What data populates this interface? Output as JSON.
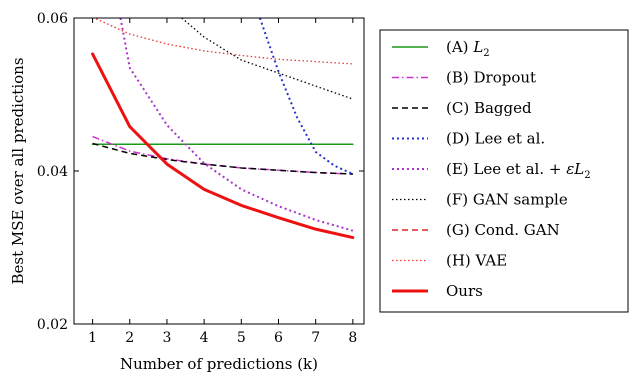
{
  "chart_data": {
    "type": "line",
    "xlabel": "Number of predictions (k)",
    "ylabel": "Best MSE over all predictions",
    "xlim": [
      0.5,
      8.3
    ],
    "ylim": [
      0.02,
      0.06
    ],
    "xticks": [
      1,
      2,
      3,
      4,
      5,
      6,
      7,
      8
    ],
    "yticks": [
      0.02,
      0.04,
      0.06
    ],
    "ytick_labels": [
      "0.02",
      "0.04",
      "0.06"
    ],
    "grid": false,
    "legend_position": "right",
    "series": [
      {
        "name": "(A) L2",
        "color": "#1a9a1a",
        "style": "solid",
        "width": 1.5,
        "x": [
          1,
          2,
          3,
          4,
          5,
          6,
          7,
          8
        ],
        "y": [
          0.0435,
          0.0435,
          0.0435,
          0.0435,
          0.0435,
          0.0435,
          0.0435,
          0.0435
        ]
      },
      {
        "name": "(B) Dropout",
        "color": "#cc33cc",
        "style": "dashdot",
        "width": 1.5,
        "x": [
          1,
          2,
          3,
          4,
          5,
          6,
          7,
          8
        ],
        "y": [
          0.0445,
          0.0426,
          0.0416,
          0.0409,
          0.0404,
          0.0401,
          0.0398,
          0.0396
        ]
      },
      {
        "name": "(C) Bagged",
        "color": "#000000",
        "style": "dashed",
        "width": 1.5,
        "x": [
          1,
          2,
          3,
          4,
          5,
          6,
          7,
          8
        ],
        "y": [
          0.0436,
          0.0423,
          0.0415,
          0.0409,
          0.0404,
          0.0401,
          0.0398,
          0.0396
        ]
      },
      {
        "name": "(D) Lee et al.",
        "color": "#2233cc",
        "style": "dotted",
        "width": 2,
        "x": [
          5.5,
          6.0,
          6.5,
          7.0,
          7.5,
          8.0
        ],
        "y": [
          0.06,
          0.053,
          0.047,
          0.0425,
          0.0407,
          0.0396
        ]
      },
      {
        "name": "(E) Lee et al. + εL2",
        "color": "#aa33cc",
        "style": "dotted",
        "width": 2,
        "x": [
          1.75,
          2,
          3,
          4,
          5,
          6,
          7,
          8
        ],
        "y": [
          0.06,
          0.0535,
          0.046,
          0.041,
          0.0376,
          0.0354,
          0.0336,
          0.0322
        ]
      },
      {
        "name": "(F) GAN sample",
        "color": "#000000",
        "style": "dotted",
        "width": 1.3,
        "x": [
          3.4,
          4,
          5,
          6,
          7,
          8
        ],
        "y": [
          0.06,
          0.0575,
          0.0545,
          0.0528,
          0.0511,
          0.0494
        ]
      },
      {
        "name": "(G) Cond. GAN",
        "color": "#dd2222",
        "style": "dashed",
        "width": 1.5,
        "x": [],
        "y": []
      },
      {
        "name": "(H) VAE",
        "color": "#ee3333",
        "style": "dotted",
        "width": 1.3,
        "x": [
          1,
          2,
          3,
          4,
          5,
          6,
          7,
          8
        ],
        "y": [
          0.0601,
          0.0579,
          0.0566,
          0.0557,
          0.0551,
          0.0546,
          0.0543,
          0.054
        ]
      },
      {
        "name": "Ours",
        "color": "#ee1111",
        "style": "solid",
        "width": 3,
        "x": [
          1,
          2,
          3,
          4,
          5,
          6,
          7,
          8
        ],
        "y": [
          0.0553,
          0.0458,
          0.0409,
          0.0376,
          0.0355,
          0.0339,
          0.0324,
          0.0313
        ]
      }
    ]
  }
}
